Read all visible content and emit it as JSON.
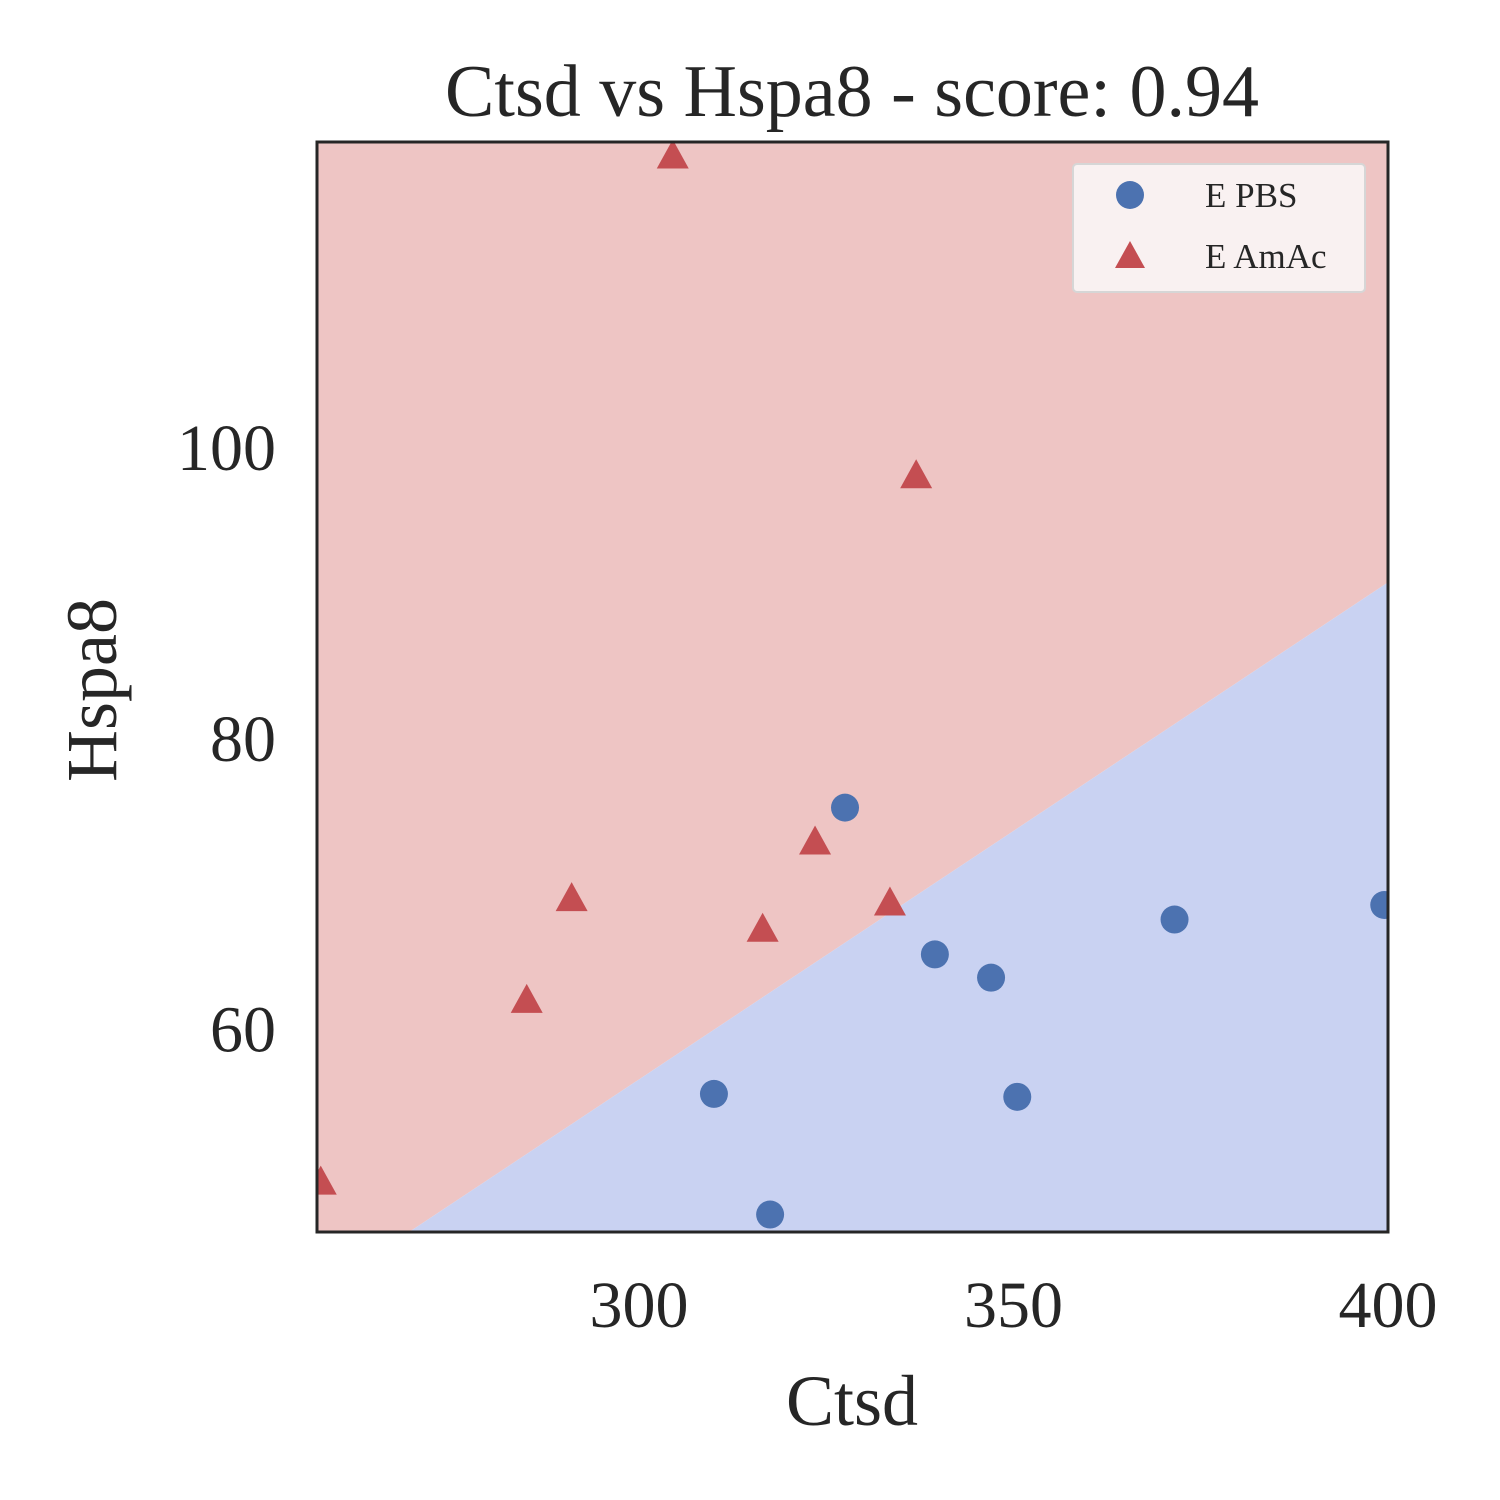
{
  "chart_data": {
    "type": "scatter",
    "title": "Ctsd vs Hspa8 - score: 0.94",
    "xlabel": "Ctsd",
    "ylabel": "Hspa8",
    "xlim": [
      257,
      400
    ],
    "ylim": [
      46,
      121
    ],
    "xticks": [
      300,
      350,
      400
    ],
    "yticks": [
      60,
      80,
      100
    ],
    "grid": false,
    "legend_position": "top-right",
    "decision_boundary": {
      "points": [
        [
          269.3,
          46
        ],
        [
          400,
          90.7
        ]
      ],
      "region_above": "E AmAc",
      "region_below": "E PBS"
    },
    "colors": {
      "E PBS": "#4c72b0",
      "E AmAc": "#c44e52",
      "region_above": "#eec5c4",
      "region_below": "#c9d2f2"
    },
    "series": [
      {
        "name": "E PBS",
        "marker": "circle",
        "points": [
          [
            310,
            55.5
          ],
          [
            317.5,
            47.2
          ],
          [
            327.5,
            75.2
          ],
          [
            339.5,
            65.1
          ],
          [
            347,
            63.5
          ],
          [
            350.5,
            55.3
          ],
          [
            371.5,
            67.5
          ],
          [
            399.5,
            68.5
          ]
        ]
      },
      {
        "name": "E AmAc",
        "marker": "triangle",
        "points": [
          [
            257.5,
            49.4
          ],
          [
            285,
            61.9
          ],
          [
            291,
            68.9
          ],
          [
            304.5,
            120
          ],
          [
            316.5,
            66.8
          ],
          [
            323.5,
            72.8
          ],
          [
            333.5,
            68.6
          ],
          [
            337,
            98
          ]
        ]
      }
    ]
  }
}
